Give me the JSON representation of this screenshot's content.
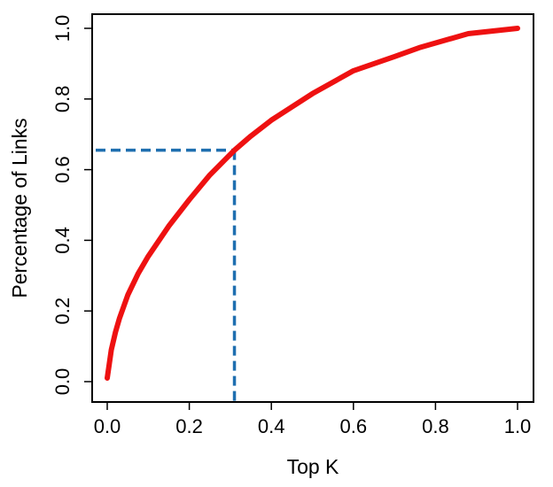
{
  "chart_data": {
    "type": "line",
    "title": "",
    "xlabel": "Top K",
    "ylabel": "Percentage of Links",
    "xlim": [
      0.0,
      1.0
    ],
    "ylim": [
      0.0,
      1.0
    ],
    "grid": false,
    "x_ticks": [
      "0.0",
      "0.2",
      "0.4",
      "0.6",
      "0.8",
      "1.0"
    ],
    "y_ticks": [
      "0.0",
      "0.2",
      "0.4",
      "0.6",
      "0.8",
      "1.0"
    ],
    "series": [
      {
        "color": "#ee1111",
        "style": "solid",
        "x": [
          0.0,
          0.005,
          0.01,
          0.02,
          0.03,
          0.05,
          0.075,
          0.1,
          0.15,
          0.2,
          0.25,
          0.31,
          0.35,
          0.4,
          0.5,
          0.6,
          0.7,
          0.76,
          0.88,
          1.0
        ],
        "y": [
          0.01,
          0.05,
          0.09,
          0.14,
          0.18,
          0.245,
          0.305,
          0.355,
          0.44,
          0.515,
          0.585,
          0.655,
          0.695,
          0.74,
          0.815,
          0.88,
          0.92,
          0.945,
          0.985,
          1.0
        ]
      }
    ],
    "reference": {
      "color": "#1f6fb0",
      "style": "dashed",
      "x": 0.31,
      "y": 0.655
    }
  }
}
